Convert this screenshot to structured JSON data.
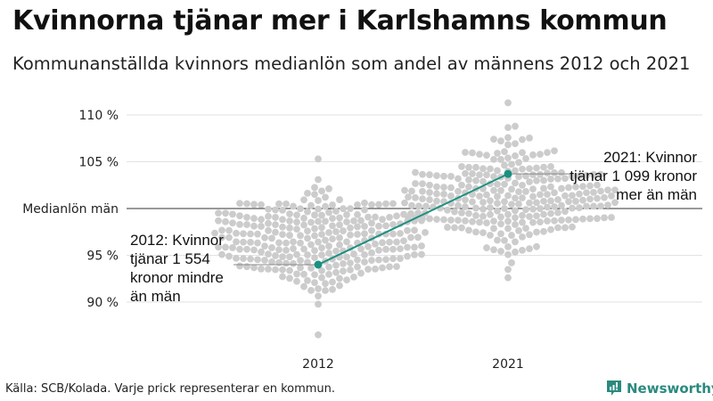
{
  "title": "Kvinnorna tjänar mer i Karlshamns kommun",
  "subtitle": "Kommunanställda kvinnors medianlön som andel av männens 2012 och 2021",
  "source": "Källa: SCB/Kolada. Varje prick representerar en kommun.",
  "brand": "Newsworthy",
  "chart_data": {
    "type": "scatter",
    "subtype": "beeswarm",
    "ylim": [
      85,
      112
    ],
    "yticks": [
      {
        "value": 110,
        "label": "110 %"
      },
      {
        "value": 105,
        "label": "105 %"
      },
      {
        "value": 100,
        "label": "Medianlön män"
      },
      {
        "value": 95,
        "label": "95 %"
      },
      {
        "value": 90,
        "label": "90 %"
      }
    ],
    "categories": [
      "2012",
      "2021"
    ],
    "distributions": [
      {
        "year": "2012",
        "count": 290,
        "center": 96.6,
        "spread": 2.6,
        "min": 86.5,
        "max": 105.3
      },
      {
        "year": "2021",
        "count": 290,
        "center": 101.3,
        "spread": 2.7,
        "min": 92.6,
        "max": 111.3
      }
    ],
    "highlight": {
      "name": "Karlshamn",
      "values": [
        94.0,
        103.7
      ],
      "color": "#1a9080"
    },
    "annotations": [
      {
        "year": "2012",
        "lines": [
          "2012: Kvinnor",
          "tjänar 1 554",
          "kronor mindre",
          "än män"
        ]
      },
      {
        "year": "2021",
        "lines": [
          "2021: Kvinnor",
          "tjänar 1 099 kronor",
          "mer än män"
        ]
      }
    ],
    "dot_color": "#cccccc"
  }
}
